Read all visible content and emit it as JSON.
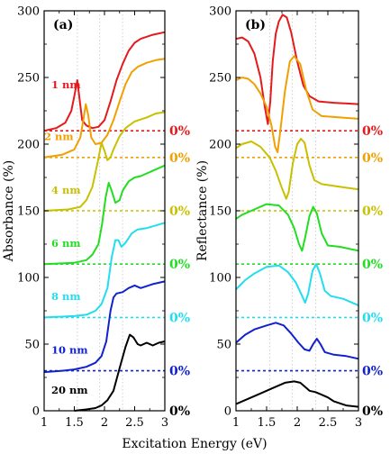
{
  "chart_data": [
    {
      "id": "a",
      "type": "line",
      "panel_label": "(a)",
      "xlabel": "Excitation Energy (eV)",
      "ylabel": "Absorbance (%)",
      "xlim": [
        1,
        3
      ],
      "ylim": [
        0,
        300
      ],
      "x_ticks": [
        1,
        1.5,
        2,
        2.5,
        3
      ],
      "y_ticks": [
        0,
        50,
        100,
        150,
        200,
        250,
        300
      ],
      "vertical_gridlines_at": [
        1.55,
        1.92,
        2.3
      ],
      "zero_label": "0%",
      "series": [
        {
          "name": "1 nm",
          "color": "#e41a1c",
          "baseline": 210,
          "points": [
            [
              1.0,
              210
            ],
            [
              1.2,
              212
            ],
            [
              1.35,
              216
            ],
            [
              1.45,
              225
            ],
            [
              1.5,
              236
            ],
            [
              1.55,
              248
            ],
            [
              1.59,
              233
            ],
            [
              1.63,
              218
            ],
            [
              1.7,
              214
            ],
            [
              1.8,
              212
            ],
            [
              1.9,
              213
            ],
            [
              2.0,
              218
            ],
            [
              2.1,
              232
            ],
            [
              2.2,
              248
            ],
            [
              2.3,
              260
            ],
            [
              2.4,
              270
            ],
            [
              2.5,
              276
            ],
            [
              2.6,
              279
            ],
            [
              2.8,
              282
            ],
            [
              3.0,
              284
            ]
          ]
        },
        {
          "name": "2 nm",
          "color": "#f0a000",
          "baseline": 190,
          "points": [
            [
              1.0,
              190
            ],
            [
              1.3,
              192
            ],
            [
              1.5,
              196
            ],
            [
              1.6,
              205
            ],
            [
              1.65,
              218
            ],
            [
              1.69,
              230
            ],
            [
              1.73,
              222
            ],
            [
              1.78,
              205
            ],
            [
              1.85,
              200
            ],
            [
              1.95,
              201
            ],
            [
              2.05,
              207
            ],
            [
              2.15,
              218
            ],
            [
              2.25,
              232
            ],
            [
              2.35,
              245
            ],
            [
              2.45,
              254
            ],
            [
              2.55,
              258
            ],
            [
              2.7,
              261
            ],
            [
              2.85,
              263
            ],
            [
              3.0,
              264
            ]
          ]
        },
        {
          "name": "4 nm",
          "color": "#c8c000",
          "baseline": 150,
          "points": [
            [
              1.0,
              150
            ],
            [
              1.4,
              151
            ],
            [
              1.6,
              153
            ],
            [
              1.7,
              158
            ],
            [
              1.8,
              168
            ],
            [
              1.88,
              185
            ],
            [
              1.95,
              201
            ],
            [
              2.0,
              195
            ],
            [
              2.05,
              188
            ],
            [
              2.1,
              190
            ],
            [
              2.15,
              196
            ],
            [
              2.25,
              206
            ],
            [
              2.35,
              212
            ],
            [
              2.5,
              217
            ],
            [
              2.7,
              220
            ],
            [
              2.85,
              223
            ],
            [
              3.0,
              224
            ]
          ]
        },
        {
          "name": "6 nm",
          "color": "#22dd22",
          "baseline": 110,
          "points": [
            [
              1.0,
              110
            ],
            [
              1.5,
              111
            ],
            [
              1.7,
              113
            ],
            [
              1.8,
              117
            ],
            [
              1.9,
              125
            ],
            [
              1.96,
              140
            ],
            [
              2.02,
              160
            ],
            [
              2.07,
              171
            ],
            [
              2.12,
              165
            ],
            [
              2.18,
              156
            ],
            [
              2.25,
              158
            ],
            [
              2.3,
              165
            ],
            [
              2.4,
              172
            ],
            [
              2.5,
              175
            ],
            [
              2.6,
              176
            ],
            [
              2.8,
              180
            ],
            [
              3.0,
              184
            ]
          ]
        },
        {
          "name": "8 nm",
          "color": "#22ddee",
          "baseline": 70,
          "points": [
            [
              1.0,
              70
            ],
            [
              1.5,
              71
            ],
            [
              1.7,
              72
            ],
            [
              1.85,
              75
            ],
            [
              1.95,
              80
            ],
            [
              2.05,
              92
            ],
            [
              2.12,
              115
            ],
            [
              2.18,
              128
            ],
            [
              2.23,
              128
            ],
            [
              2.28,
              123
            ],
            [
              2.35,
              126
            ],
            [
              2.45,
              133
            ],
            [
              2.55,
              136
            ],
            [
              2.7,
              137
            ],
            [
              2.85,
              139
            ],
            [
              3.0,
              141
            ]
          ]
        },
        {
          "name": "10 nm",
          "color": "#1122cc",
          "baseline": 30,
          "points": [
            [
              1.0,
              29
            ],
            [
              1.3,
              30
            ],
            [
              1.5,
              31
            ],
            [
              1.7,
              33
            ],
            [
              1.85,
              36
            ],
            [
              1.95,
              41
            ],
            [
              2.03,
              52
            ],
            [
              2.1,
              75
            ],
            [
              2.15,
              85
            ],
            [
              2.2,
              88
            ],
            [
              2.3,
              89
            ],
            [
              2.4,
              92
            ],
            [
              2.5,
              94
            ],
            [
              2.6,
              92
            ],
            [
              2.8,
              95
            ],
            [
              3.0,
              97
            ]
          ]
        },
        {
          "name": "20 nm",
          "color": "#000000",
          "baseline": 0,
          "points": [
            [
              1.5,
              0
            ],
            [
              1.7,
              1
            ],
            [
              1.85,
              2
            ],
            [
              1.95,
              4
            ],
            [
              2.05,
              8
            ],
            [
              2.15,
              15
            ],
            [
              2.25,
              32
            ],
            [
              2.35,
              48
            ],
            [
              2.42,
              57
            ],
            [
              2.48,
              55
            ],
            [
              2.55,
              50
            ],
            [
              2.6,
              49
            ],
            [
              2.7,
              51
            ],
            [
              2.8,
              49
            ],
            [
              2.9,
              51
            ],
            [
              3.0,
              52
            ]
          ]
        }
      ]
    },
    {
      "id": "b",
      "type": "line",
      "panel_label": "(b)",
      "xlabel": "Excitation Energy (eV)",
      "ylabel": "Reflectance (%)",
      "xlim": [
        1,
        3
      ],
      "ylim": [
        0,
        300
      ],
      "x_ticks": [
        1,
        1.5,
        2,
        2.5,
        3
      ],
      "y_ticks": [
        0,
        50,
        100,
        150,
        200,
        250,
        300
      ],
      "vertical_gridlines_at": [
        1.55,
        1.92,
        2.3
      ],
      "zero_label": "0%",
      "series": [
        {
          "name": "1 nm",
          "color": "#e41a1c",
          "baseline": 210,
          "points": [
            [
              1.0,
              279
            ],
            [
              1.1,
              280
            ],
            [
              1.2,
              277
            ],
            [
              1.3,
              268
            ],
            [
              1.4,
              250
            ],
            [
              1.47,
              228
            ],
            [
              1.52,
              215
            ],
            [
              1.56,
              232
            ],
            [
              1.6,
              262
            ],
            [
              1.65,
              283
            ],
            [
              1.7,
              292
            ],
            [
              1.76,
              297
            ],
            [
              1.83,
              295
            ],
            [
              1.9,
              284
            ],
            [
              2.0,
              262
            ],
            [
              2.1,
              244
            ],
            [
              2.2,
              236
            ],
            [
              2.35,
              232
            ],
            [
              2.6,
              231
            ],
            [
              3.0,
              230
            ]
          ]
        },
        {
          "name": "2 nm",
          "color": "#f0a000",
          "baseline": 190,
          "points": [
            [
              1.0,
              248
            ],
            [
              1.1,
              250
            ],
            [
              1.2,
              249
            ],
            [
              1.3,
              245
            ],
            [
              1.4,
              238
            ],
            [
              1.5,
              228
            ],
            [
              1.58,
              214
            ],
            [
              1.64,
              198
            ],
            [
              1.68,
              194
            ],
            [
              1.73,
              212
            ],
            [
              1.8,
              240
            ],
            [
              1.88,
              262
            ],
            [
              1.95,
              266
            ],
            [
              2.05,
              260
            ],
            [
              2.15,
              240
            ],
            [
              2.25,
              226
            ],
            [
              2.4,
              221
            ],
            [
              2.7,
              220
            ],
            [
              3.0,
              219
            ]
          ]
        },
        {
          "name": "4 nm",
          "color": "#c8c000",
          "baseline": 150,
          "points": [
            [
              1.0,
              197
            ],
            [
              1.1,
              200
            ],
            [
              1.25,
              202
            ],
            [
              1.4,
              198
            ],
            [
              1.55,
              190
            ],
            [
              1.65,
              180
            ],
            [
              1.75,
              167
            ],
            [
              1.82,
              159
            ],
            [
              1.86,
              164
            ],
            [
              1.93,
              186
            ],
            [
              2.0,
              200
            ],
            [
              2.06,
              204
            ],
            [
              2.12,
              201
            ],
            [
              2.2,
              184
            ],
            [
              2.28,
              173
            ],
            [
              2.4,
              170
            ],
            [
              2.7,
              168
            ],
            [
              3.0,
              166
            ]
          ]
        },
        {
          "name": "6 nm",
          "color": "#22dd22",
          "baseline": 110,
          "points": [
            [
              1.0,
              144
            ],
            [
              1.1,
              147
            ],
            [
              1.3,
              151
            ],
            [
              1.5,
              155
            ],
            [
              1.7,
              154
            ],
            [
              1.85,
              147
            ],
            [
              1.95,
              137
            ],
            [
              2.03,
              125
            ],
            [
              2.08,
              120
            ],
            [
              2.13,
              130
            ],
            [
              2.2,
              146
            ],
            [
              2.26,
              153
            ],
            [
              2.32,
              148
            ],
            [
              2.4,
              133
            ],
            [
              2.5,
              124
            ],
            [
              2.7,
              123
            ],
            [
              3.0,
              120
            ]
          ]
        },
        {
          "name": "8 nm",
          "color": "#22ddee",
          "baseline": 70,
          "points": [
            [
              1.0,
              91
            ],
            [
              1.15,
              98
            ],
            [
              1.3,
              103
            ],
            [
              1.5,
              108
            ],
            [
              1.7,
              109
            ],
            [
              1.85,
              104
            ],
            [
              1.98,
              96
            ],
            [
              2.07,
              87
            ],
            [
              2.13,
              81
            ],
            [
              2.18,
              88
            ],
            [
              2.25,
              105
            ],
            [
              2.31,
              110
            ],
            [
              2.37,
              103
            ],
            [
              2.45,
              90
            ],
            [
              2.55,
              86
            ],
            [
              2.75,
              84
            ],
            [
              3.0,
              79
            ]
          ]
        },
        {
          "name": "10 nm",
          "color": "#1122cc",
          "baseline": 30,
          "points": [
            [
              1.0,
              51
            ],
            [
              1.15,
              57
            ],
            [
              1.3,
              61
            ],
            [
              1.5,
              64
            ],
            [
              1.65,
              66
            ],
            [
              1.78,
              64
            ],
            [
              1.9,
              58
            ],
            [
              2.02,
              51
            ],
            [
              2.12,
              46
            ],
            [
              2.2,
              45
            ],
            [
              2.26,
              50
            ],
            [
              2.32,
              54
            ],
            [
              2.38,
              50
            ],
            [
              2.45,
              44
            ],
            [
              2.6,
              42
            ],
            [
              2.8,
              41
            ],
            [
              3.0,
              39
            ]
          ]
        },
        {
          "name": "20 nm",
          "color": "#000000",
          "baseline": 0,
          "points": [
            [
              1.0,
              5
            ],
            [
              1.2,
              9
            ],
            [
              1.4,
              13
            ],
            [
              1.6,
              17
            ],
            [
              1.8,
              21
            ],
            [
              1.95,
              22
            ],
            [
              2.05,
              21
            ],
            [
              2.15,
              17
            ],
            [
              2.2,
              15
            ],
            [
              2.3,
              14
            ],
            [
              2.4,
              12
            ],
            [
              2.5,
              10
            ],
            [
              2.6,
              7
            ],
            [
              2.8,
              4
            ],
            [
              3.0,
              3
            ]
          ]
        }
      ]
    }
  ]
}
